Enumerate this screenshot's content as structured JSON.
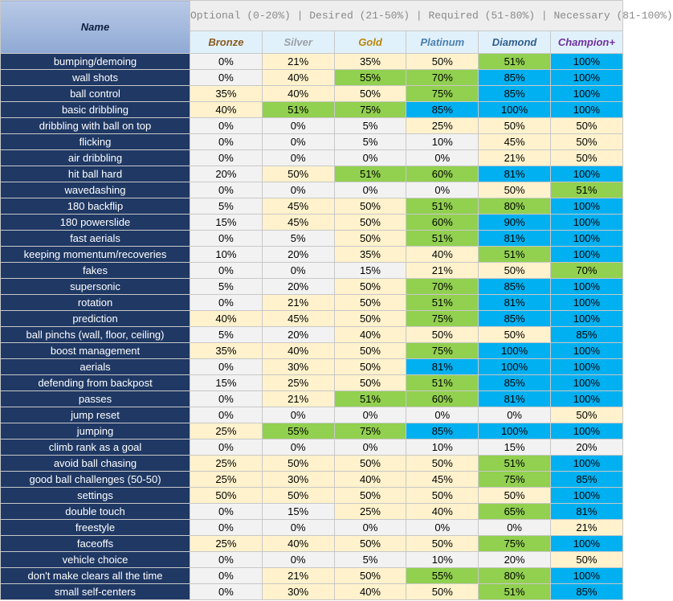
{
  "header": {
    "name_label": "Name",
    "legend": "Optional (0-20%) | Desired (21-50%) | Required (51-80%) | Necessary (81-100%)"
  },
  "colors": {
    "optional": "#f2f2f2",
    "desired": "#fff2cc",
    "required": "#92d050",
    "necessary": "#00b0f0",
    "name_column": "#1f3864"
  },
  "ranks": [
    {
      "label": "Bronze",
      "color": "#8a5a1c"
    },
    {
      "label": "Silver",
      "color": "#9aa0a6"
    },
    {
      "label": "Gold",
      "color": "#b8860b"
    },
    {
      "label": "Platinum",
      "color": "#4a7fb0"
    },
    {
      "label": "Diamond",
      "color": "#2e5e8e"
    },
    {
      "label": "Champion+",
      "color": "#7030a0"
    }
  ],
  "skills": [
    {
      "name": "bumping/demoing",
      "values": [
        "0%",
        "21%",
        "35%",
        "50%",
        "51%",
        "100%"
      ]
    },
    {
      "name": "wall shots",
      "values": [
        "0%",
        "40%",
        "55%",
        "70%",
        "85%",
        "100%"
      ]
    },
    {
      "name": "ball control",
      "values": [
        "35%",
        "40%",
        "50%",
        "75%",
        "85%",
        "100%"
      ]
    },
    {
      "name": "basic dribbling",
      "values": [
        "40%",
        "51%",
        "75%",
        "85%",
        "100%",
        "100%"
      ]
    },
    {
      "name": "dribbling with ball on top",
      "values": [
        "0%",
        "0%",
        "5%",
        "25%",
        "50%",
        "50%"
      ]
    },
    {
      "name": "flicking",
      "values": [
        "0%",
        "0%",
        "5%",
        "10%",
        "45%",
        "50%"
      ]
    },
    {
      "name": "air dribbling",
      "values": [
        "0%",
        "0%",
        "0%",
        "0%",
        "21%",
        "50%"
      ]
    },
    {
      "name": "hit ball hard",
      "values": [
        "20%",
        "50%",
        "51%",
        "60%",
        "81%",
        "100%"
      ]
    },
    {
      "name": "wavedashing",
      "values": [
        "0%",
        "0%",
        "0%",
        "0%",
        "50%",
        "51%"
      ]
    },
    {
      "name": "180 backflip",
      "values": [
        "5%",
        "45%",
        "50%",
        "51%",
        "80%",
        "100%"
      ]
    },
    {
      "name": "180 powerslide",
      "values": [
        "15%",
        "45%",
        "50%",
        "60%",
        "90%",
        "100%"
      ]
    },
    {
      "name": "fast aerials",
      "values": [
        "0%",
        "5%",
        "50%",
        "51%",
        "81%",
        "100%"
      ]
    },
    {
      "name": "keeping momentum/recoveries",
      "values": [
        "10%",
        "20%",
        "35%",
        "40%",
        "51%",
        "100%"
      ]
    },
    {
      "name": "fakes",
      "values": [
        "0%",
        "0%",
        "15%",
        "21%",
        "50%",
        "70%"
      ]
    },
    {
      "name": "supersonic",
      "values": [
        "5%",
        "20%",
        "50%",
        "70%",
        "85%",
        "100%"
      ]
    },
    {
      "name": "rotation",
      "values": [
        "0%",
        "21%",
        "50%",
        "51%",
        "81%",
        "100%"
      ]
    },
    {
      "name": "prediction",
      "values": [
        "40%",
        "45%",
        "50%",
        "75%",
        "85%",
        "100%"
      ]
    },
    {
      "name": "ball pinchs (wall, floor, ceiling)",
      "values": [
        "5%",
        "20%",
        "40%",
        "50%",
        "50%",
        "85%"
      ]
    },
    {
      "name": "boost management",
      "values": [
        "35%",
        "40%",
        "50%",
        "75%",
        "100%",
        "100%"
      ]
    },
    {
      "name": "aerials",
      "values": [
        "0%",
        "30%",
        "50%",
        "81%",
        "100%",
        "100%"
      ]
    },
    {
      "name": "defending from backpost",
      "values": [
        "15%",
        "25%",
        "50%",
        "51%",
        "85%",
        "100%"
      ]
    },
    {
      "name": "passes",
      "values": [
        "0%",
        "21%",
        "51%",
        "60%",
        "81%",
        "100%"
      ]
    },
    {
      "name": "jump reset",
      "values": [
        "0%",
        "0%",
        "0%",
        "0%",
        "0%",
        "50%"
      ]
    },
    {
      "name": "jumping",
      "values": [
        "25%",
        "55%",
        "75%",
        "85%",
        "100%",
        "100%"
      ]
    },
    {
      "name": "climb rank as a goal",
      "values": [
        "0%",
        "0%",
        "0%",
        "10%",
        "15%",
        "20%"
      ]
    },
    {
      "name": "avoid ball chasing",
      "values": [
        "25%",
        "50%",
        "50%",
        "50%",
        "51%",
        "100%"
      ]
    },
    {
      "name": "good ball challenges (50-50)",
      "values": [
        "25%",
        "30%",
        "40%",
        "45%",
        "75%",
        "85%"
      ]
    },
    {
      "name": "settings",
      "values": [
        "50%",
        "50%",
        "50%",
        "50%",
        "50%",
        "100%"
      ]
    },
    {
      "name": "double touch",
      "values": [
        "0%",
        "15%",
        "25%",
        "40%",
        "65%",
        "81%"
      ]
    },
    {
      "name": "freestyle",
      "values": [
        "0%",
        "0%",
        "0%",
        "0%",
        "0%",
        "21%"
      ]
    },
    {
      "name": "faceoffs",
      "values": [
        "25%",
        "40%",
        "50%",
        "50%",
        "75%",
        "100%"
      ]
    },
    {
      "name": "vehicle choice",
      "values": [
        "0%",
        "0%",
        "5%",
        "10%",
        "20%",
        "50%"
      ]
    },
    {
      "name": "don't make clears all the time",
      "values": [
        "0%",
        "21%",
        "50%",
        "55%",
        "80%",
        "100%"
      ]
    },
    {
      "name": "small self-centers",
      "values": [
        "0%",
        "30%",
        "40%",
        "50%",
        "51%",
        "85%"
      ]
    }
  ]
}
